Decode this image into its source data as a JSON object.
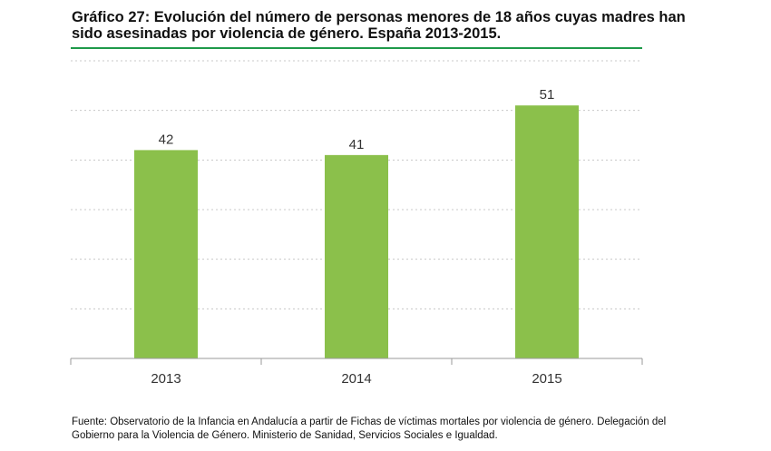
{
  "title": "Gráfico 27: Evolución del número de personas menores de 18 años cuyas madres han sido asesinadas por violencia de género. España 2013-2015.",
  "source": "Fuente: Observatorio de la Infancia en Andalucía a partir de Fichas de víctimas mortales por violencia de género. Delegación del Gobierno para la Violencia de Género. Ministerio de Sanidad, Servicios Sociales e Igualdad.",
  "colors": {
    "bar": "#8bc04b",
    "accent_rule": "#1f9a4a",
    "grid": "#c8c8c8"
  },
  "chart_data": {
    "type": "bar",
    "categories": [
      "2013",
      "2014",
      "2015"
    ],
    "values": [
      42,
      41,
      51
    ],
    "title": "Gráfico 27: Evolución del número de personas menores de 18 años cuyas madres han sido asesinadas por violencia de género. España 2013-2015.",
    "xlabel": "",
    "ylabel": "",
    "ylim": [
      0,
      60
    ],
    "grid": true,
    "data_labels": true,
    "legend": "none"
  }
}
